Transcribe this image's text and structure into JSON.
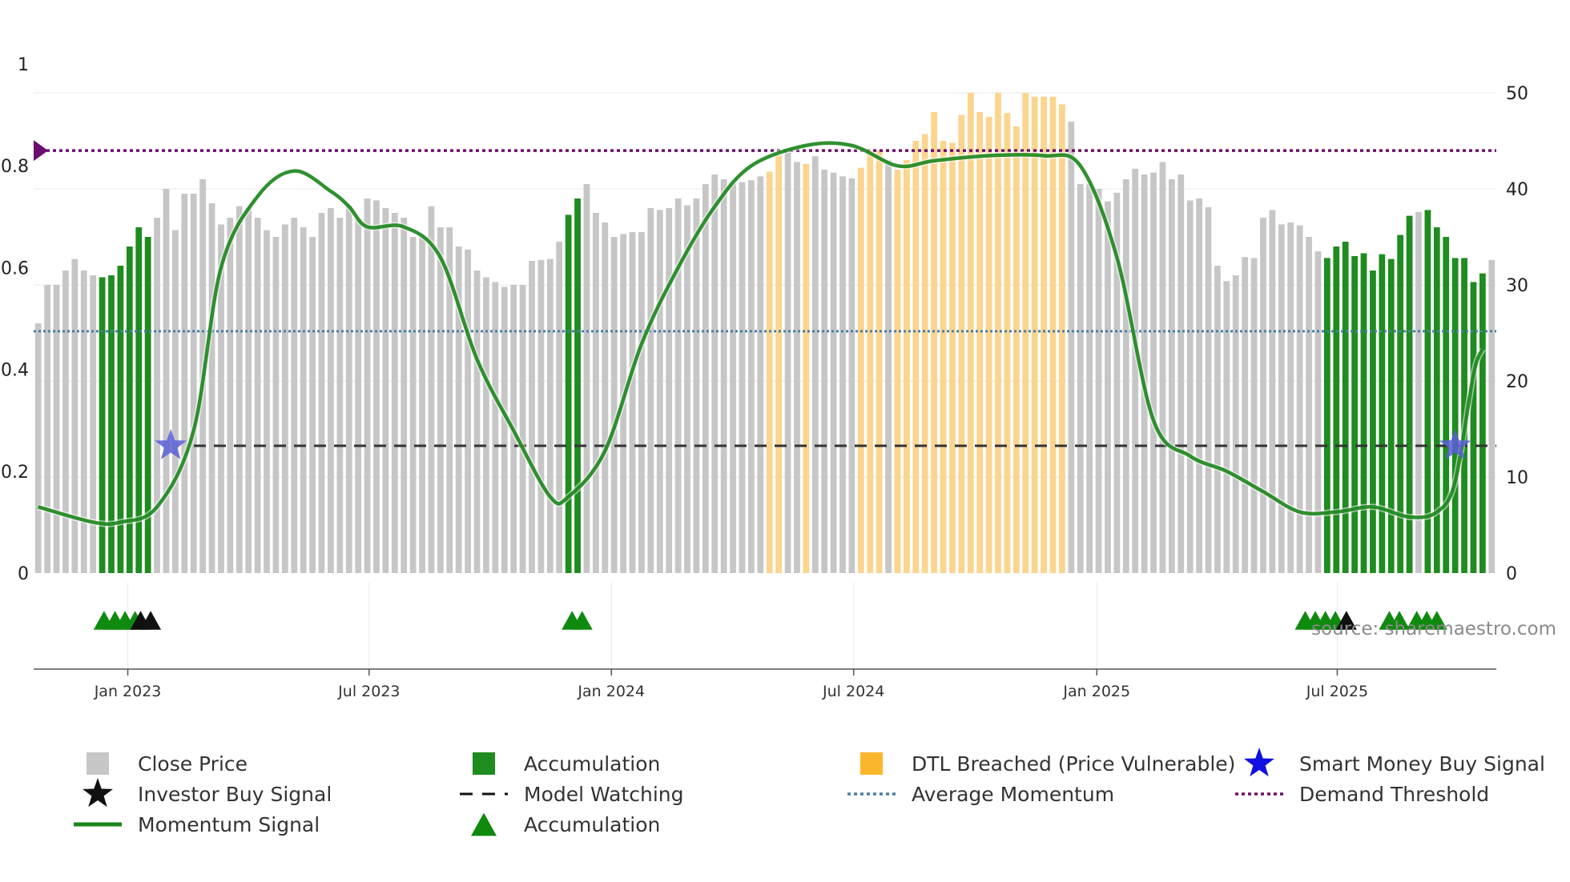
{
  "chart_data": {
    "type": "bar",
    "title": "",
    "source": "source: sharemaestro.com",
    "y_left": {
      "ylim": [
        0,
        1
      ],
      "ticks": [
        "0",
        "0.2",
        "0.4",
        "0.6",
        "0.8",
        "1"
      ],
      "tick_values": [
        0,
        0.2,
        0.4,
        0.6,
        0.8,
        1
      ]
    },
    "y_right": {
      "ylim": [
        0,
        50
      ],
      "ticks": [
        "0",
        "10",
        "20",
        "30",
        "40",
        "50"
      ],
      "tick_values": [
        0,
        10,
        20,
        30,
        40,
        50
      ]
    },
    "x_axis": {
      "week_range": [
        0,
        159
      ],
      "ticks": [
        {
          "label": "Jan 2023",
          "week": 9.8
        },
        {
          "label": "Jul 2023",
          "week": 36.2
        },
        {
          "label": "Jan 2024",
          "week": 62.7
        },
        {
          "label": "Jul 2024",
          "week": 89.2
        },
        {
          "label": "Jan 2025",
          "week": 115.8
        },
        {
          "label": "Jul 2025",
          "week": 142.1
        }
      ]
    },
    "close_price": [
      26,
      30,
      30,
      31.5,
      32.7,
      31.5,
      31,
      30.8,
      31,
      32,
      34,
      36,
      35,
      37,
      40,
      35.7,
      39.5,
      39.5,
      41,
      38.5,
      36.3,
      37,
      38.2,
      38,
      37,
      35.7,
      35,
      36.3,
      37,
      36,
      35,
      37.5,
      38,
      37,
      38.3,
      37,
      39,
      38.8,
      38,
      37.5,
      37,
      35,
      35,
      38.2,
      36,
      36,
      34,
      33.7,
      31.5,
      30.8,
      30.3,
      29.8,
      30,
      30,
      32.5,
      32.6,
      32.7,
      34.5,
      37.3,
      39,
      40.5,
      37.5,
      36.5,
      35,
      35.3,
      35.5,
      35.5,
      38,
      37.8,
      38,
      39,
      38.3,
      39,
      40.5,
      41.5,
      41,
      40.5,
      40.7,
      40.9,
      41.3,
      41.8,
      43.5,
      43.8,
      42.8,
      42.6,
      43.4,
      42,
      41.7,
      41.3,
      41.1,
      42.2,
      44,
      44,
      43,
      42,
      43,
      45,
      45.7,
      48,
      45,
      44.8,
      47.7,
      50,
      48,
      47.5,
      50,
      47.9,
      46.5,
      50,
      49.6,
      49.6,
      49.6,
      48.8,
      47,
      40.5,
      40.5,
      40,
      38.7,
      39.6,
      41,
      42.1,
      41.5,
      41.7,
      42.8,
      41,
      41.5,
      38.8,
      39,
      38.1,
      32,
      30.4,
      31,
      32.9,
      32.8,
      37,
      37.8,
      36.3,
      36.5,
      36.2,
      35,
      33.5,
      32.8,
      34,
      34.5,
      33,
      33.3,
      31.5,
      33.2,
      32.7,
      35.2,
      37.2,
      37.6,
      37.8,
      36,
      35,
      32.8,
      32.8,
      30.3,
      31.2,
      32.6
    ],
    "accumulation_weeks": [
      7,
      8,
      9,
      10,
      11,
      12,
      58,
      59,
      141,
      142,
      143,
      144,
      145,
      146,
      147,
      148,
      149,
      150,
      152,
      153,
      154,
      155,
      156,
      157,
      158
    ],
    "dtl_breached_weeks": [
      80,
      81,
      84,
      90,
      91,
      92,
      94,
      95,
      96,
      97,
      98,
      99,
      100,
      101,
      102,
      103,
      104,
      105,
      106,
      107,
      108,
      109,
      110,
      111,
      112
    ],
    "momentum_signal": [
      [
        0,
        0.13
      ],
      [
        6,
        0.1
      ],
      [
        9,
        0.1
      ],
      [
        13,
        0.13
      ],
      [
        17,
        0.28
      ],
      [
        20,
        0.6
      ],
      [
        24,
        0.74
      ],
      [
        28,
        0.79
      ],
      [
        32,
        0.75
      ],
      [
        34,
        0.72
      ],
      [
        36,
        0.68
      ],
      [
        40,
        0.68
      ],
      [
        44,
        0.62
      ],
      [
        48,
        0.42
      ],
      [
        52,
        0.28
      ],
      [
        56,
        0.15
      ],
      [
        58,
        0.15
      ],
      [
        62,
        0.24
      ],
      [
        66,
        0.45
      ],
      [
        70,
        0.6
      ],
      [
        74,
        0.72
      ],
      [
        78,
        0.8
      ],
      [
        84,
        0.84
      ],
      [
        89,
        0.84
      ],
      [
        94,
        0.8
      ],
      [
        98,
        0.81
      ],
      [
        104,
        0.82
      ],
      [
        110,
        0.82
      ],
      [
        114,
        0.8
      ],
      [
        118,
        0.62
      ],
      [
        122,
        0.3
      ],
      [
        126,
        0.23
      ],
      [
        130,
        0.2
      ],
      [
        134,
        0.16
      ],
      [
        138,
        0.12
      ],
      [
        142,
        0.12
      ],
      [
        146,
        0.13
      ],
      [
        150,
        0.11
      ],
      [
        153,
        0.12
      ],
      [
        155,
        0.18
      ],
      [
        157,
        0.39
      ],
      [
        158,
        0.44
      ]
    ],
    "model_watching_level": 0.25,
    "average_momentum_level": 0.475,
    "demand_threshold_level": 0.83,
    "smart_money_buy_signal_weeks": [
      14.5,
      155
    ],
    "accumulation_marker_weeks": [
      7.2,
      8.4,
      9.5,
      10.6,
      58.4,
      59.5,
      138.6,
      139.7,
      140.8,
      141.9,
      147.8,
      148.9,
      150.8,
      151.9,
      153
    ],
    "investor_buy_signal_weeks": [
      11.2,
      12.3,
      143.1
    ],
    "legend": [
      "Close Price",
      "Accumulation",
      "DTL Breached (Price Vulnerable)",
      "Smart Money Buy Signal",
      "Investor Buy Signal",
      "Model Watching",
      "Average Momentum",
      "Demand Threshold",
      "Momentum Signal",
      "Accumulation"
    ],
    "colors": {
      "close_price": "#c6c6c6",
      "accumulation": "#1e8c1e",
      "dtl_breached": "#fbd48e",
      "momentum": "#1a841a",
      "model_watching": "#333333",
      "average_momentum": "#4a7fa6",
      "demand_threshold": "#6a0f6f",
      "smart_money": "#5b5fd6",
      "investor": "#111111",
      "accumulation_marker": "#0f8a0f"
    }
  }
}
